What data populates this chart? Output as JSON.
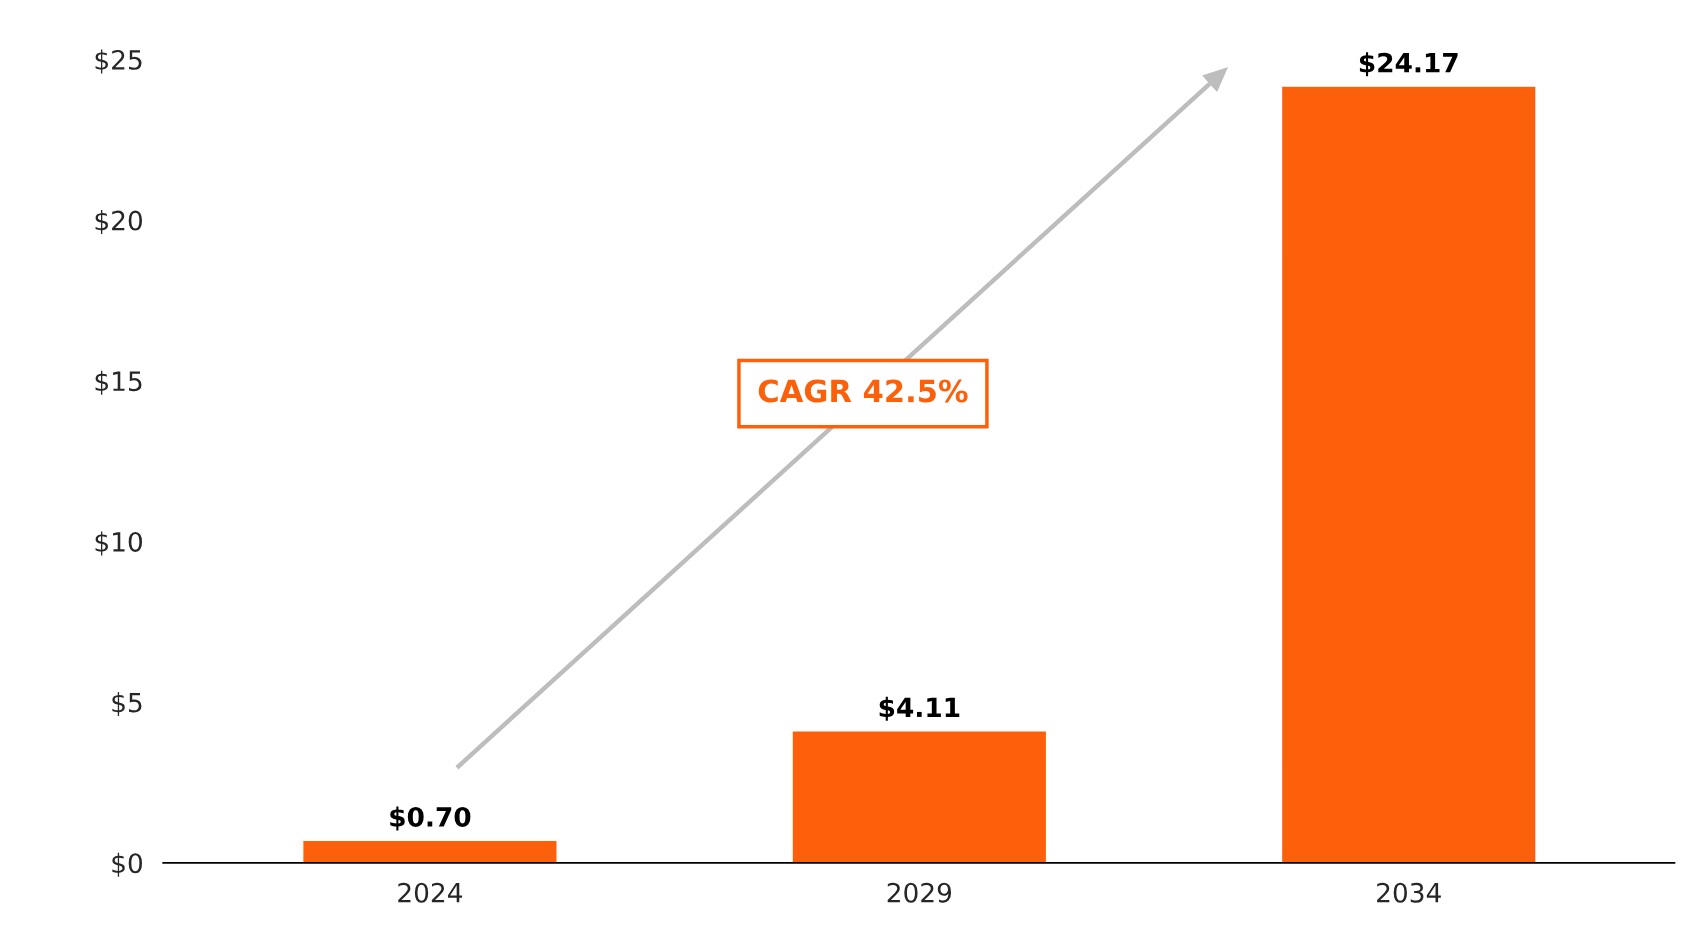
{
  "chart_data": {
    "type": "bar",
    "categories": [
      "2024",
      "2029",
      "2034"
    ],
    "values": [
      0.7,
      4.11,
      24.17
    ],
    "value_labels": [
      "$0.70",
      "$4.11",
      "$24.17"
    ],
    "color": "#fc600a",
    "ylim": [
      0,
      25
    ],
    "yticks": [
      {
        "value": 0,
        "label": "$0"
      },
      {
        "value": 5,
        "label": "$5"
      },
      {
        "value": 10,
        "label": "$10"
      },
      {
        "value": 15,
        "label": "$15"
      },
      {
        "value": 20,
        "label": "$20"
      },
      {
        "value": 25,
        "label": "$25"
      }
    ],
    "annotations": [
      "CAGR 42.5%"
    ],
    "grid": false,
    "legend": false
  }
}
